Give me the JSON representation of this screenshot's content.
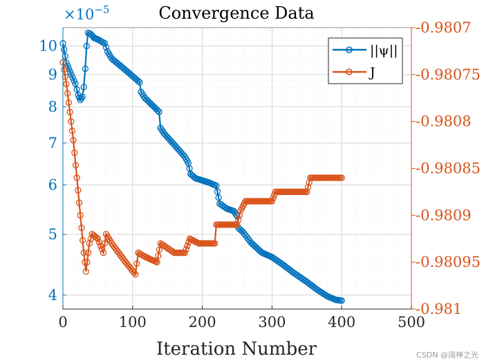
{
  "chart_data": {
    "type": "line",
    "title": "Convergence Data",
    "xlabel": "Iteration Number",
    "xlim": [
      0,
      500
    ],
    "xticks": [
      0,
      100,
      200,
      300,
      400,
      500
    ],
    "xtick_labels": [
      "0",
      "100",
      "200",
      "300",
      "400",
      "500"
    ],
    "left_axis": {
      "scale": "log",
      "exponent_label": "×10",
      "exponent_power": "−5",
      "ylim": [
        3.8,
        10.7
      ],
      "ticks": [
        4,
        5,
        6,
        7,
        8,
        9,
        10
      ],
      "tick_labels": [
        "4",
        "5",
        "6",
        "7",
        "8",
        "9",
        "10"
      ],
      "color": "#0072BD"
    },
    "right_axis": {
      "scale": "linear",
      "ylim": [
        -0.981,
        -0.9807
      ],
      "ticks": [
        -0.9807,
        -0.98075,
        -0.9808,
        -0.98085,
        -0.9809,
        -0.98095,
        -0.981
      ],
      "tick_labels": [
        "-0.9807",
        "-0.98075",
        "-0.9808",
        "-0.98085",
        "-0.9809",
        "-0.98095",
        "-0.981"
      ],
      "color": "#D95319"
    },
    "grid": true,
    "legend_position": "top-right",
    "series": [
      {
        "name": "||ψ||",
        "axis": "left",
        "color": "#0072BD",
        "marker": "o",
        "points": [
          [
            0,
            10.1
          ],
          [
            5,
            9.4
          ],
          [
            12,
            9.0
          ],
          [
            18,
            8.7
          ],
          [
            22,
            8.35
          ],
          [
            25,
            8.2
          ],
          [
            28,
            8.3
          ],
          [
            30,
            8.6
          ],
          [
            32,
            9.2
          ],
          [
            34,
            10.0
          ],
          [
            36,
            10.5
          ],
          [
            40,
            10.45
          ],
          [
            45,
            10.3
          ],
          [
            50,
            10.25
          ],
          [
            60,
            10.1
          ],
          [
            64,
            9.8
          ],
          [
            70,
            9.55
          ],
          [
            80,
            9.35
          ],
          [
            90,
            9.15
          ],
          [
            100,
            8.95
          ],
          [
            110,
            8.75
          ],
          [
            112,
            8.45
          ],
          [
            118,
            8.25
          ],
          [
            128,
            8.05
          ],
          [
            138,
            7.85
          ],
          [
            140,
            7.4
          ],
          [
            145,
            7.25
          ],
          [
            155,
            7.05
          ],
          [
            165,
            6.85
          ],
          [
            175,
            6.65
          ],
          [
            180,
            6.5
          ],
          [
            183,
            6.25
          ],
          [
            190,
            6.15
          ],
          [
            200,
            6.1
          ],
          [
            210,
            6.05
          ],
          [
            220,
            5.98
          ],
          [
            225,
            5.6
          ],
          [
            235,
            5.5
          ],
          [
            245,
            5.45
          ],
          [
            250,
            5.35
          ],
          [
            252,
            5.12
          ],
          [
            258,
            5.05
          ],
          [
            270,
            4.85
          ],
          [
            285,
            4.68
          ],
          [
            300,
            4.6
          ],
          [
            315,
            4.48
          ],
          [
            330,
            4.35
          ],
          [
            350,
            4.2
          ],
          [
            365,
            4.08
          ],
          [
            380,
            3.98
          ],
          [
            392,
            3.93
          ],
          [
            400,
            3.92
          ]
        ]
      },
      {
        "name": "J",
        "axis": "right",
        "color": "#D95319",
        "marker": "o",
        "points": [
          [
            0,
            -0.980737
          ],
          [
            5,
            -0.98076
          ],
          [
            10,
            -0.98079
          ],
          [
            15,
            -0.98082
          ],
          [
            20,
            -0.98086
          ],
          [
            25,
            -0.9809
          ],
          [
            30,
            -0.98094
          ],
          [
            33,
            -0.98096
          ],
          [
            38,
            -0.98093
          ],
          [
            42,
            -0.98092
          ],
          [
            50,
            -0.980925
          ],
          [
            58,
            -0.98094
          ],
          [
            62,
            -0.98092
          ],
          [
            70,
            -0.98093
          ],
          [
            80,
            -0.98094
          ],
          [
            90,
            -0.98095
          ],
          [
            104,
            -0.980963
          ],
          [
            108,
            -0.98094
          ],
          [
            120,
            -0.980945
          ],
          [
            135,
            -0.98095
          ],
          [
            140,
            -0.98093
          ],
          [
            150,
            -0.980935
          ],
          [
            160,
            -0.98094
          ],
          [
            175,
            -0.98094
          ],
          [
            182,
            -0.980925
          ],
          [
            195,
            -0.98093
          ],
          [
            218,
            -0.98093
          ],
          [
            220,
            -0.98091
          ],
          [
            250,
            -0.98091
          ],
          [
            255,
            -0.980895
          ],
          [
            262,
            -0.980885
          ],
          [
            300,
            -0.980885
          ],
          [
            305,
            -0.980875
          ],
          [
            350,
            -0.980875
          ],
          [
            355,
            -0.98086
          ],
          [
            400,
            -0.98086
          ]
        ]
      }
    ],
    "legend": [
      "||ψ||",
      "J"
    ]
  },
  "watermark": "CSDN @阔神之光"
}
